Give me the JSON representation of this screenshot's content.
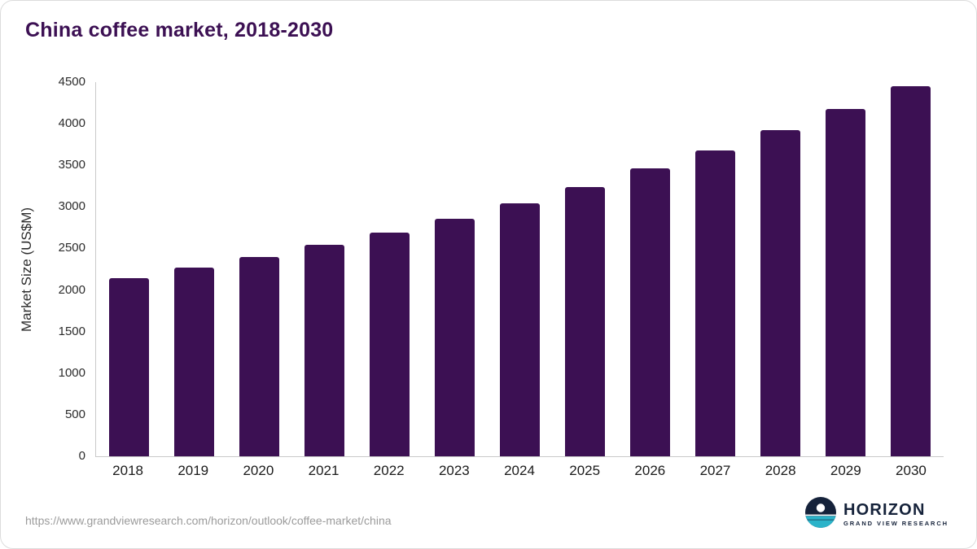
{
  "title": "China coffee market, 2018-2030",
  "colors": {
    "bar": "#3c1053",
    "title": "#3c1053",
    "axis_line": "#c9c9c9",
    "logo_navy": "#15223a",
    "logo_teal": "#2bb3c9"
  },
  "chart_data": {
    "type": "bar",
    "title": "China coffee market, 2018-2030",
    "categories": [
      "2018",
      "2019",
      "2020",
      "2021",
      "2022",
      "2023",
      "2024",
      "2025",
      "2026",
      "2027",
      "2028",
      "2029",
      "2030"
    ],
    "values": [
      2140,
      2270,
      2395,
      2540,
      2695,
      2860,
      3045,
      3240,
      3460,
      3680,
      3925,
      4180,
      4455
    ],
    "xlabel": "",
    "ylabel": "Market Size (US$M)",
    "ylim": [
      0,
      4500
    ],
    "yticks": [
      0,
      500,
      1000,
      1500,
      2000,
      2500,
      3000,
      3500,
      4000,
      4500
    ],
    "grid": false,
    "legend": "none"
  },
  "footer": {
    "source_url": "https://www.grandviewresearch.com/horizon/outlook/coffee-market/china",
    "logo_title": "HORIZON",
    "logo_subtitle": "GRAND VIEW RESEARCH"
  }
}
